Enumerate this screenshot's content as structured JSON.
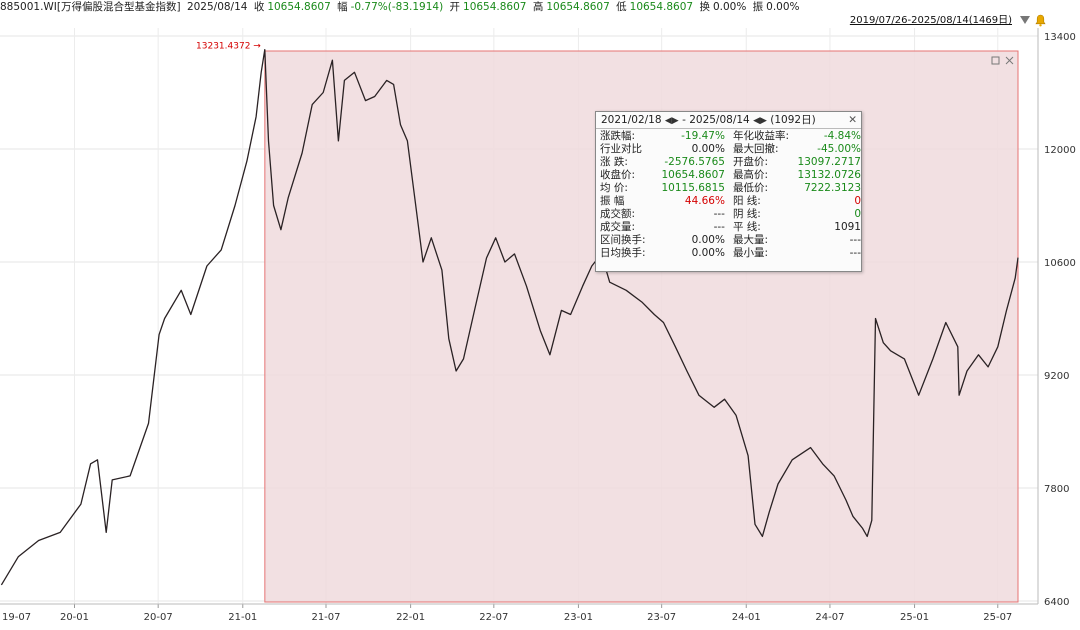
{
  "header": {
    "code": "885001.WI[万得偏股混合型基金指数]",
    "date": "2025/08/14",
    "close_label": "收",
    "close": "10654.8607",
    "change_label": "幅",
    "change": "-0.77%(-83.1914)",
    "open_label": "开",
    "open": "10654.8607",
    "high_label": "高",
    "high": "10654.8607",
    "low_label": "低",
    "low": "10654.8607",
    "turnover_label": "换",
    "turnover": "0.00%",
    "amplitude_label": "振",
    "amplitude": "0.00%",
    "date_range": "2019/07/26-2025/08/14(1469日)"
  },
  "colors": {
    "up": "#d40000",
    "down": "#1a8a1a",
    "line": "#2a2224",
    "selection": "#f0dadd",
    "selection_border": "#e57373"
  },
  "stats_popup": {
    "title_start": "2021/02/18",
    "title_sep": "-",
    "title_end": "2025/08/14",
    "title_days": "(1092日)",
    "rows": [
      {
        "l1": "涨跌幅:",
        "v1": "-19.47%",
        "c1": "g",
        "l2": "年化收益率:",
        "v2": "-4.84%",
        "c2": "g"
      },
      {
        "l1": "行业对比",
        "v1": "0.00%",
        "c1": "",
        "l2": "最大回撤:",
        "v2": "-45.00%",
        "c2": "g"
      },
      {
        "l1": "涨   跌:",
        "v1": "-2576.5765",
        "c1": "g",
        "l2": "开盘价:",
        "v2": "13097.2717",
        "c2": "g"
      },
      {
        "l1": "收盘价:",
        "v1": "10654.8607",
        "c1": "g",
        "l2": "最高价:",
        "v2": "13132.0726",
        "c2": "g"
      },
      {
        "l1": "均   价:",
        "v1": "10115.6815",
        "c1": "g",
        "l2": "最低价:",
        "v2": "7222.3123",
        "c2": "g"
      },
      {
        "l1": "振   幅",
        "v1": "44.66%",
        "c1": "r",
        "l2": "阳   线:",
        "v2": "0",
        "c2": "r"
      },
      {
        "l1": "成交额:",
        "v1": "---",
        "c1": "",
        "l2": "阴   线:",
        "v2": "0",
        "c2": "g"
      },
      {
        "l1": "成交量:",
        "v1": "---",
        "c1": "",
        "l2": "平   线:",
        "v2": "1091",
        "c2": ""
      },
      {
        "l1": "区间换手:",
        "v1": "0.00%",
        "c1": "",
        "l2": "最大量:",
        "v2": "---",
        "c2": ""
      },
      {
        "l1": "日均换手:",
        "v1": "0.00%",
        "c1": "",
        "l2": "最小量:",
        "v2": "---",
        "c2": ""
      }
    ]
  },
  "chart_data": {
    "type": "line",
    "title": "885001.WI[万得偏股混合型基金指数]",
    "xlabel": "",
    "ylabel": "",
    "ylim": [
      6400,
      13400
    ],
    "yticks": [
      6400,
      7800,
      9200,
      10600,
      12000,
      13400
    ],
    "x_tick_labels": [
      "19-07",
      "20-01",
      "20-07",
      "21-01",
      "21-07",
      "22-01",
      "22-07",
      "23-01",
      "23-07",
      "24-01",
      "24-07",
      "25-01",
      "25-07"
    ],
    "x_tick_dates": [
      "2019-07-01",
      "2020-01-01",
      "2020-07-01",
      "2021-01-01",
      "2021-07-01",
      "2022-01-01",
      "2022-07-01",
      "2023-01-01",
      "2023-07-01",
      "2024-01-01",
      "2024-07-01",
      "2025-01-01",
      "2025-07-01"
    ],
    "x_range": [
      "2019-07-26",
      "2025-08-14"
    ],
    "grid": true,
    "annotation": {
      "label": "13231.4372",
      "date": "2021-02-18",
      "value": 13231.4372
    },
    "selection": {
      "start": "2021-02-18",
      "end": "2025-08-14"
    },
    "series": [
      {
        "x": [
          "2019-07-26",
          "2019-09-01",
          "2019-10-15",
          "2019-12-01",
          "2020-01-15",
          "2020-02-05",
          "2020-02-20",
          "2020-03-10",
          "2020-03-23",
          "2020-05-01",
          "2020-06-10",
          "2020-07-03",
          "2020-07-15",
          "2020-08-20",
          "2020-09-10",
          "2020-10-15",
          "2020-11-15",
          "2020-12-15",
          "2021-01-10",
          "2021-01-30",
          "2021-02-10",
          "2021-02-18",
          "2021-02-26",
          "2021-03-09",
          "2021-03-25",
          "2021-04-10",
          "2021-05-10",
          "2021-06-01",
          "2021-06-25",
          "2021-07-15",
          "2021-07-28",
          "2021-08-10",
          "2021-09-01",
          "2021-09-25",
          "2021-10-15",
          "2021-11-10",
          "2021-11-25",
          "2021-12-10",
          "2021-12-25",
          "2022-01-10",
          "2022-01-28",
          "2022-02-15",
          "2022-03-10",
          "2022-03-25",
          "2022-04-10",
          "2022-04-26",
          "2022-05-20",
          "2022-06-15",
          "2022-07-05",
          "2022-07-25",
          "2022-08-15",
          "2022-09-10",
          "2022-10-10",
          "2022-10-31",
          "2022-11-25",
          "2022-12-15",
          "2023-01-10",
          "2023-01-30",
          "2023-02-20",
          "2023-03-10",
          "2023-04-15",
          "2023-05-20",
          "2023-06-15",
          "2023-07-05",
          "2023-07-31",
          "2023-08-25",
          "2023-09-20",
          "2023-10-23",
          "2023-11-15",
          "2023-12-10",
          "2024-01-05",
          "2024-01-20",
          "2024-02-05",
          "2024-02-20",
          "2024-03-10",
          "2024-04-10",
          "2024-05-20",
          "2024-06-15",
          "2024-07-10",
          "2024-08-05",
          "2024-08-20",
          "2024-09-10",
          "2024-09-20",
          "2024-09-30",
          "2024-10-08",
          "2024-10-25",
          "2024-11-10",
          "2024-12-10",
          "2025-01-10",
          "2025-02-10",
          "2025-03-10",
          "2025-04-05",
          "2025-04-08",
          "2025-04-25",
          "2025-05-20",
          "2025-06-10",
          "2025-07-01",
          "2025-07-20",
          "2025-08-08",
          "2025-08-14"
        ],
        "values": [
          6600,
          6950,
          7150,
          7250,
          7600,
          8100,
          8150,
          7250,
          7900,
          7950,
          8600,
          9700,
          9900,
          10250,
          9950,
          10550,
          10750,
          11300,
          11850,
          12400,
          12950,
          13231,
          12100,
          11300,
          11000,
          11400,
          11950,
          12550,
          12700,
          13100,
          12100,
          12850,
          12950,
          12600,
          12650,
          12850,
          12800,
          12300,
          12100,
          11400,
          10600,
          10900,
          10500,
          9650,
          9250,
          9400,
          10000,
          10650,
          10900,
          10600,
          10700,
          10300,
          9750,
          9450,
          10000,
          9950,
          10300,
          10550,
          10700,
          10350,
          10250,
          10100,
          9950,
          9850,
          9550,
          9250,
          8950,
          8800,
          8900,
          8700,
          8200,
          7350,
          7200,
          7500,
          7850,
          8150,
          8300,
          8100,
          7950,
          7650,
          7450,
          7300,
          7200,
          7400,
          9900,
          9600,
          9500,
          9400,
          8950,
          9400,
          9850,
          9550,
          8950,
          9250,
          9450,
          9300,
          9550,
          10000,
          10400,
          10654.86
        ]
      }
    ]
  }
}
